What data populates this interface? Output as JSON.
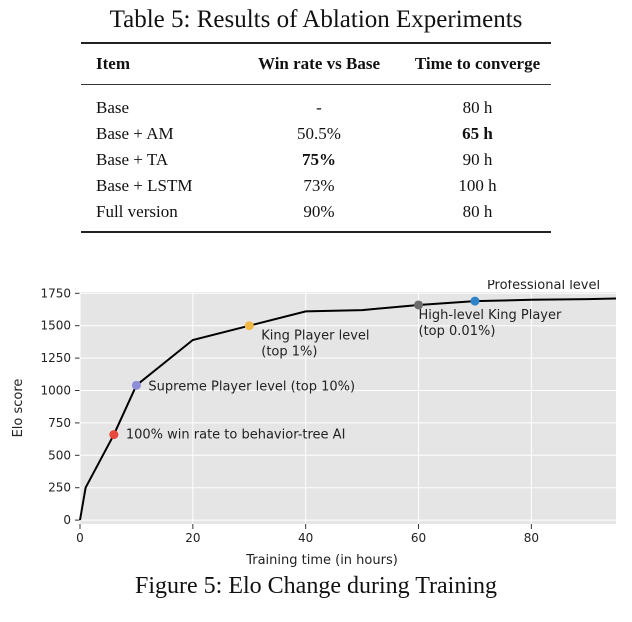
{
  "table": {
    "caption": "Table 5: Results of Ablation Experiments",
    "headers": [
      "Item",
      "Win rate vs Base",
      "Time to converge"
    ],
    "rows": [
      {
        "item": "Base",
        "win_rate": "-",
        "time": "80 h",
        "bold_win": false,
        "bold_time": false
      },
      {
        "item": "Base + AM",
        "win_rate": "50.5%",
        "time": "65 h",
        "bold_win": false,
        "bold_time": true
      },
      {
        "item": "Base + TA",
        "win_rate": "75%",
        "time": "90 h",
        "bold_win": true,
        "bold_time": false
      },
      {
        "item": "Base + LSTM",
        "win_rate": "73%",
        "time": "100 h",
        "bold_win": false,
        "bold_time": false
      },
      {
        "item": "Full version",
        "win_rate": "90%",
        "time": "80 h",
        "bold_win": false,
        "bold_time": false
      }
    ]
  },
  "figure": {
    "caption": "Figure 5: Elo Change during Training"
  },
  "chart_data": {
    "type": "line",
    "title": "",
    "xlabel": "Training time (in hours)",
    "ylabel": "Elo score",
    "xlim": [
      0,
      95
    ],
    "ylim": [
      -30,
      1760
    ],
    "xticks": [
      0,
      20,
      40,
      60,
      80
    ],
    "yticks": [
      0,
      250,
      500,
      750,
      1000,
      1250,
      1500,
      1750
    ],
    "ytick_labels": [
      "0",
      "250",
      "500",
      "750",
      "1000",
      "1250",
      "1500",
      "1750"
    ],
    "xtick_labels": [
      "0",
      "20",
      "40",
      "60",
      "80"
    ],
    "grid": true,
    "background": "#e5e5e5",
    "line_color": "#000000",
    "series": [
      {
        "name": "Elo",
        "x": [
          0,
          1,
          6,
          10,
          20,
          30,
          40,
          50,
          60,
          70,
          80,
          90,
          95
        ],
        "y": [
          0,
          250,
          660,
          1040,
          1390,
          1500,
          1610,
          1620,
          1660,
          1690,
          1700,
          1705,
          1710
        ]
      }
    ],
    "milestones": [
      {
        "x": 6,
        "y": 660,
        "color": "#e8473c",
        "label": [
          "100% win rate to behavior-tree AI"
        ]
      },
      {
        "x": 10,
        "y": 1040,
        "color": "#8c8fd8",
        "label": [
          "Supreme Player level (top 10%)"
        ]
      },
      {
        "x": 30,
        "y": 1500,
        "color": "#f2b845",
        "label": [
          "King Player level",
          "(top 1%)"
        ]
      },
      {
        "x": 60,
        "y": 1660,
        "color": "#6b6b6b",
        "label": [
          "High-level King Player",
          "(top 0.01%)"
        ]
      },
      {
        "x": 70,
        "y": 1690,
        "color": "#2f84c9",
        "label": [
          "Professional level"
        ]
      }
    ]
  }
}
